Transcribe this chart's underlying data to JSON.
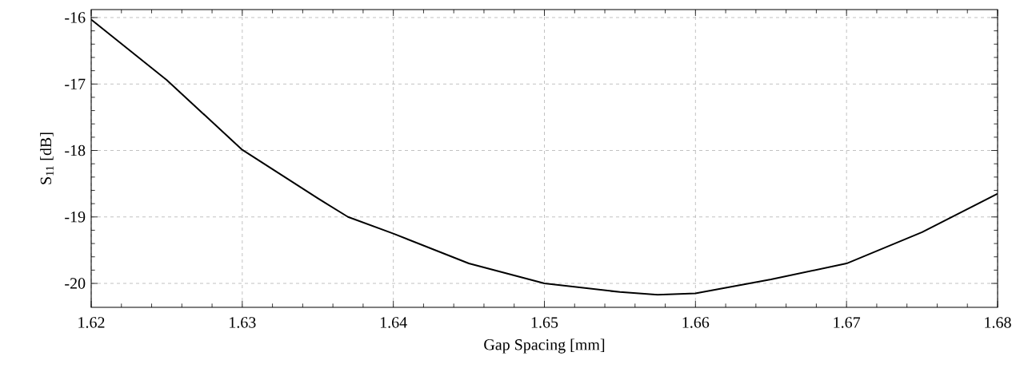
{
  "chart_data": {
    "type": "line",
    "xlabel": "Gap Spacing [mm]",
    "ylabel": "S$_{11}$ [dB]",
    "x": [
      1.62,
      1.625,
      1.63,
      1.635,
      1.637,
      1.64,
      1.645,
      1.65,
      1.655,
      1.6575,
      1.66,
      1.665,
      1.67,
      1.675,
      1.68
    ],
    "series": [
      {
        "color": "#000000",
        "values": [
          -16.03,
          -16.94,
          -17.99,
          -18.72,
          -19.0,
          -19.25,
          -19.7,
          -20.0,
          -20.13,
          -20.17,
          -20.15,
          -19.94,
          -19.7,
          -19.23,
          -18.65
        ]
      }
    ],
    "xlim": [
      1.62,
      1.68
    ],
    "ylim": [
      -20.36,
      -15.88
    ],
    "xticks": [
      1.62,
      1.63,
      1.64,
      1.65,
      1.66,
      1.67,
      1.68
    ],
    "yticks": [
      -20,
      -19,
      -18,
      -17,
      -16
    ],
    "grid": true,
    "line_style": "solid",
    "marker": "none"
  }
}
